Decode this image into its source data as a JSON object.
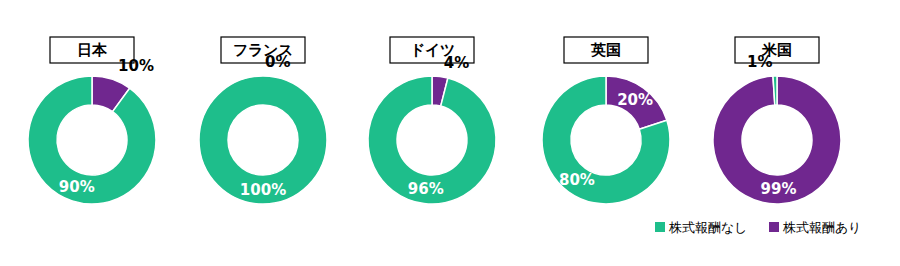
{
  "chart_data": [
    {
      "type": "pie",
      "title": "日本",
      "categories": [
        "株式報酬なし",
        "株式報酬あり"
      ],
      "values": [
        90,
        10
      ],
      "value_labels": [
        "90%",
        "10%"
      ],
      "colors": [
        "#1EBE8B",
        "#70278F"
      ],
      "data_labels": true
    },
    {
      "type": "pie",
      "title": "フランス",
      "categories": [
        "株式報酬なし",
        "株式報酬あり"
      ],
      "values": [
        100,
        0
      ],
      "value_labels": [
        "100%",
        "0%"
      ],
      "colors": [
        "#1EBE8B",
        "#70278F"
      ],
      "data_labels": true
    },
    {
      "type": "pie",
      "title": "ドイツ",
      "categories": [
        "株式報酬なし",
        "株式報酬あり"
      ],
      "values": [
        96,
        4
      ],
      "value_labels": [
        "96%",
        "4%"
      ],
      "colors": [
        "#1EBE8B",
        "#70278F"
      ],
      "data_labels": true
    },
    {
      "type": "pie",
      "title": "英国",
      "categories": [
        "株式報酬なし",
        "株式報酬あり"
      ],
      "values": [
        80,
        20
      ],
      "value_labels": [
        "80%",
        "20%"
      ],
      "colors": [
        "#1EBE8B",
        "#70278F"
      ],
      "data_labels": true
    },
    {
      "type": "pie",
      "title": "米国",
      "categories": [
        "株式報酬なし",
        "株式報酬あり"
      ],
      "values": [
        1,
        99
      ],
      "value_labels": [
        "1%",
        "99%"
      ],
      "colors": [
        "#1EBE8B",
        "#70278F"
      ],
      "data_labels": true,
      "legend": "bottom-right"
    }
  ]
}
